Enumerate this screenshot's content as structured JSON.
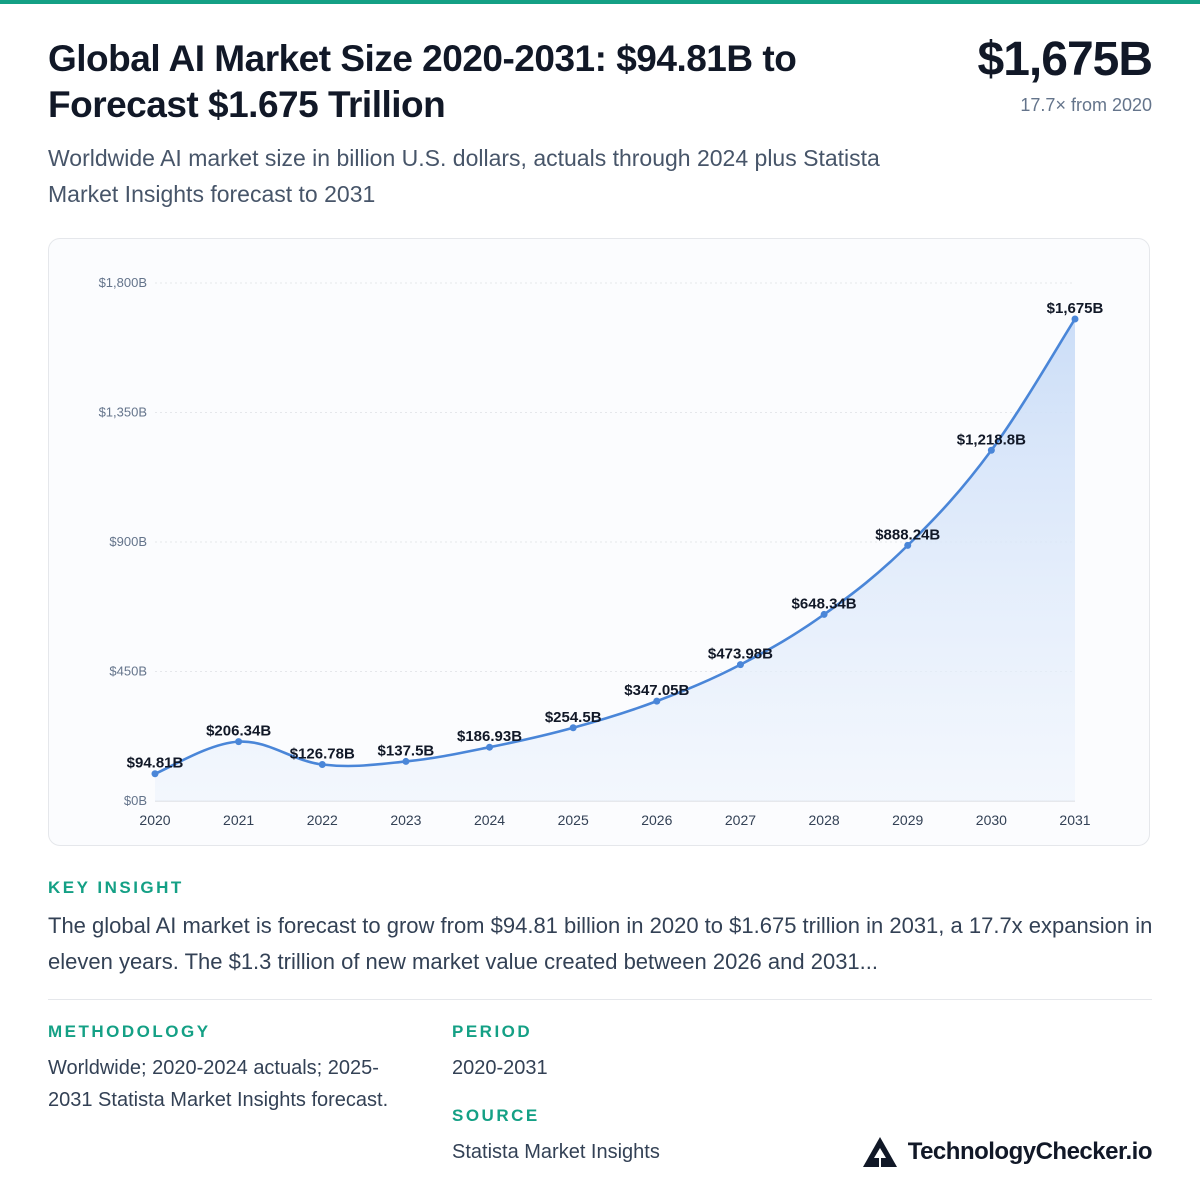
{
  "header": {
    "title": "Global AI Market Size 2020-2031: $94.81B to Forecast $1.675 Trillion",
    "headline_value": "$1,675B",
    "headline_sub": "17.7× from 2020",
    "subtitle": "Worldwide AI market size in billion U.S. dollars, actuals through 2024 plus Statista Market Insights forecast to 2031"
  },
  "chart_data": {
    "type": "area",
    "x": [
      "2020",
      "2021",
      "2022",
      "2023",
      "2024",
      "2025",
      "2026",
      "2027",
      "2028",
      "2029",
      "2030",
      "2031"
    ],
    "values": [
      94.81,
      206.34,
      126.78,
      137.5,
      186.93,
      254.5,
      347.05,
      473.98,
      648.34,
      888.24,
      1218.8,
      1675
    ],
    "data_labels": [
      "$94.81B",
      "$206.34B",
      "$126.78B",
      "$137.5B",
      "$186.93B",
      "$254.5B",
      "$347.05B",
      "$473.98B",
      "$648.34B",
      "$888.24B",
      "$1,218.8B",
      "$1,675B"
    ],
    "yticks": [
      0,
      450,
      900,
      1350,
      1800
    ],
    "ytick_labels": [
      "$0B",
      "$450B",
      "$900B",
      "$1,350B",
      "$1,800B"
    ],
    "ylim": [
      0,
      1800
    ],
    "grid": true,
    "colors": {
      "line": "#4a86d8",
      "fill_top": "#c9dcf7",
      "fill_bottom": "#eef4fd",
      "point": "#4a86d8"
    }
  },
  "insight": {
    "label": "KEY INSIGHT",
    "text": "The global AI market is forecast to grow from $94.81 billion in 2020 to $1.675 trillion in 2031, a 17.7x expansion in eleven years. The $1.3 trillion of new market value created between 2026 and 2031..."
  },
  "methodology": {
    "label": "METHODOLOGY",
    "text": "Worldwide; 2020-2024 actuals; 2025-2031 Statista Market Insights forecast."
  },
  "period": {
    "label": "PERIOD",
    "text": "2020-2031"
  },
  "source": {
    "label": "SOURCE",
    "text": "Statista Market Insights"
  },
  "brand": {
    "name": "TechnologyChecker.io",
    "icon": "triangle-logo-icon"
  },
  "colors": {
    "accent": "#14a085",
    "title": "#111827",
    "body": "#334155"
  }
}
